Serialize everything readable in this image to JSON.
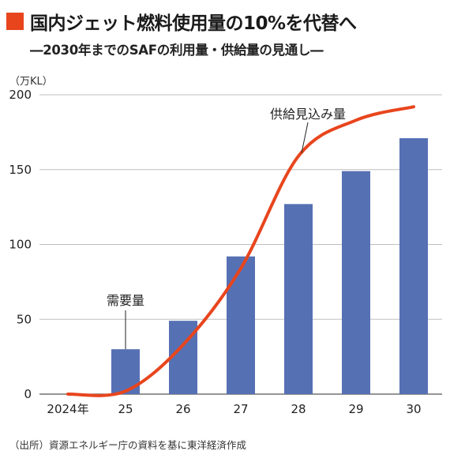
{
  "title": "国内ジェット燃料使用量の10%を代替へ",
  "subtitle": "―2030年までのSAFの利用量・供給量の見通し―",
  "unit_label": "（万KL）",
  "source": "（出所）資源エネルギー庁の資料を基に東洋経済作成",
  "colors": {
    "accent": "#e8451d",
    "bar": "#5670b4",
    "line": "#e8451d",
    "grid": "#bfbfbf"
  },
  "chart_data": {
    "type": "bar",
    "categories": [
      "2024年",
      "25",
      "26",
      "27",
      "28",
      "29",
      "30"
    ],
    "ylim": [
      0,
      200
    ],
    "yticks": [
      0,
      50,
      100,
      150,
      200
    ],
    "grid": true,
    "series": [
      {
        "name": "需要量",
        "type": "bar",
        "values": [
          0,
          30,
          49,
          92,
          127,
          149,
          171
        ]
      },
      {
        "name": "供給見込み量",
        "type": "line",
        "values": [
          0,
          2,
          33,
          84,
          159,
          183,
          192
        ]
      }
    ]
  }
}
